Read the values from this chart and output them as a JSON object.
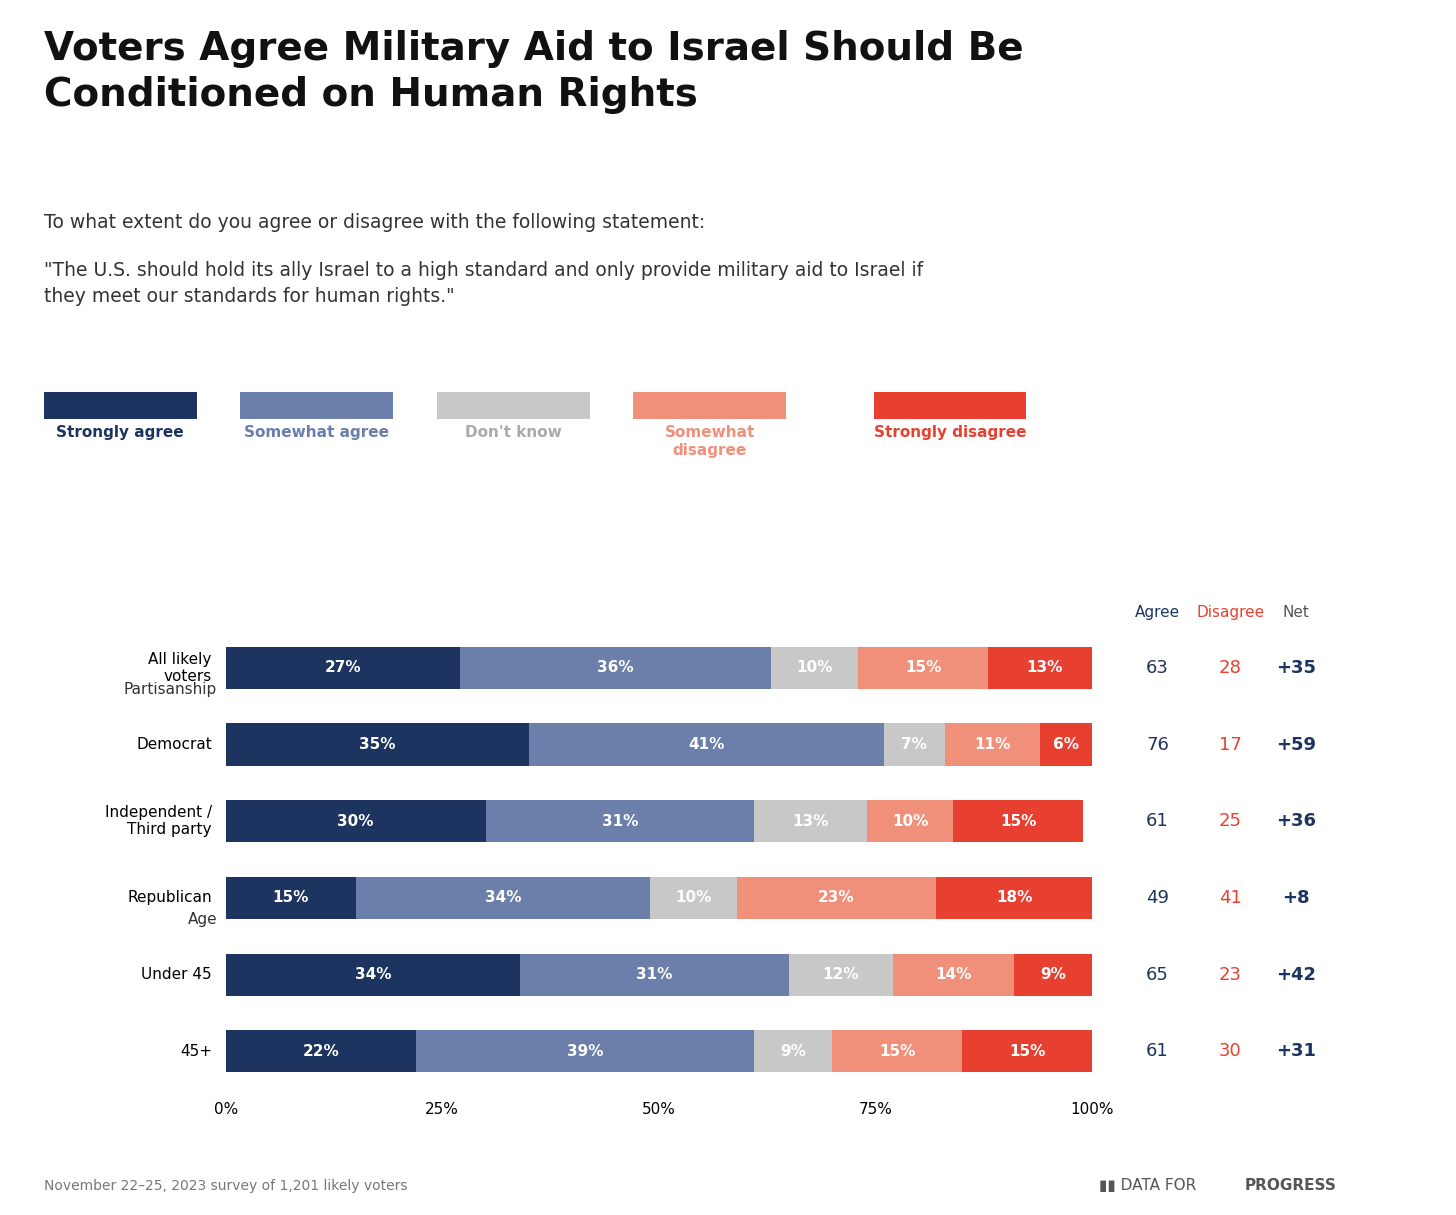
{
  "title": "Voters Agree Military Aid to Israel Should Be\nConditioned on Human Rights",
  "subtitle": "To what extent do you agree or disagree with the following statement:",
  "quote": "\"The U.S. should hold its ally Israel to a high standard and only provide military aid to Israel if\nthey meet our standards for human rights.\"",
  "footnote": "November 22–25, 2023 survey of 1,201 likely voters",
  "colors": {
    "strongly_agree": "#1d3461",
    "somewhat_agree": "#6b7faa",
    "dont_know": "#c8c8c8",
    "somewhat_disagree": "#f0907a",
    "strongly_disagree": "#e84030"
  },
  "legend_labels": [
    "Strongly agree",
    "Somewhat agree",
    "Don't know",
    "Somewhat\ndisagree",
    "Strongly disagree"
  ],
  "legend_text_colors": [
    "#1d3461",
    "#6b7faa",
    "#aaaaaa",
    "#f0907a",
    "#e84030"
  ],
  "categories": [
    "All likely\nvoters",
    "Democrat",
    "Independent /\nThird party",
    "Republican",
    "Under 45",
    "45+"
  ],
  "data": [
    [
      27,
      36,
      10,
      15,
      13
    ],
    [
      35,
      41,
      7,
      11,
      6
    ],
    [
      30,
      31,
      13,
      10,
      15
    ],
    [
      15,
      34,
      10,
      23,
      18
    ],
    [
      34,
      31,
      12,
      14,
      9
    ],
    [
      22,
      39,
      9,
      15,
      15
    ]
  ],
  "agree_vals": [
    63,
    76,
    61,
    49,
    65,
    61
  ],
  "disagree_vals": [
    28,
    17,
    25,
    41,
    23,
    30
  ],
  "net_vals": [
    "+35",
    "+59",
    "+36",
    "+8",
    "+42",
    "+31"
  ],
  "background_color": "#ffffff",
  "agree_color": "#1d3461",
  "disagree_color": "#e84030",
  "net_color": "#1d3461",
  "partisanship_label_row": 1,
  "age_label_row": 4
}
